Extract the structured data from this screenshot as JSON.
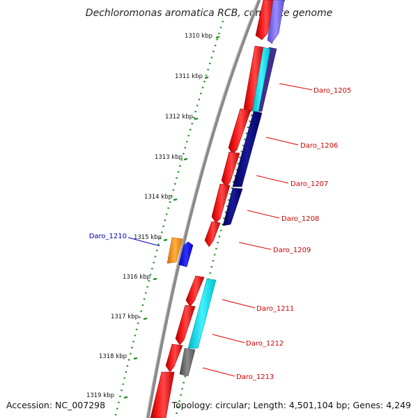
{
  "title": "Dechloromonas aromatica RCB, complete genome",
  "footer": {
    "accession": "Accession: NC_007298",
    "topology": "Topology: circular; Length: 4,501,104 bp; Genes: 4,249"
  },
  "scale": {
    "ticks": [
      {
        "label": "1310 kbp"
      },
      {
        "label": "1311 kbp"
      },
      {
        "label": "1312 kbp"
      },
      {
        "label": "1313 kbp"
      },
      {
        "label": "1314 kbp"
      },
      {
        "label": "1315 kbp"
      },
      {
        "label": "1316 kbp"
      },
      {
        "label": "1317 kbp"
      },
      {
        "label": "1318 kbp"
      },
      {
        "label": "1319 kbp"
      }
    ]
  },
  "genes": [
    {
      "id": "Daro_1205",
      "label": "Daro_1205",
      "color": "#cc0000"
    },
    {
      "id": "Daro_1206",
      "label": "Daro_1206",
      "color": "#cc0000"
    },
    {
      "id": "Daro_1207",
      "label": "Daro_1207",
      "color": "#cc0000"
    },
    {
      "id": "Daro_1208",
      "label": "Daro_1208",
      "color": "#cc0000"
    },
    {
      "id": "Daro_1209",
      "label": "Daro_1209",
      "color": "#cc0000"
    },
    {
      "id": "Daro_1210",
      "label": "Daro_1210",
      "color": "#0000aa"
    },
    {
      "id": "Daro_1211",
      "label": "Daro_1211",
      "color": "#cc0000"
    },
    {
      "id": "Daro_1212",
      "label": "Daro_1212",
      "color": "#cc0000"
    },
    {
      "id": "Daro_1213",
      "label": "Daro_1213",
      "color": "#cc0000"
    }
  ],
  "colors": {
    "backbone": "#7a7a7a",
    "cds": "#ff0000",
    "tick_dots": "#1a8a1a",
    "cyan_feature": "#00e5ee",
    "navy_feature": "#000080",
    "purple_feature": "#7b68ee",
    "orange_feature": "#ff8c00",
    "blue_feature": "#0000ff",
    "gray_feature": "#666666"
  }
}
